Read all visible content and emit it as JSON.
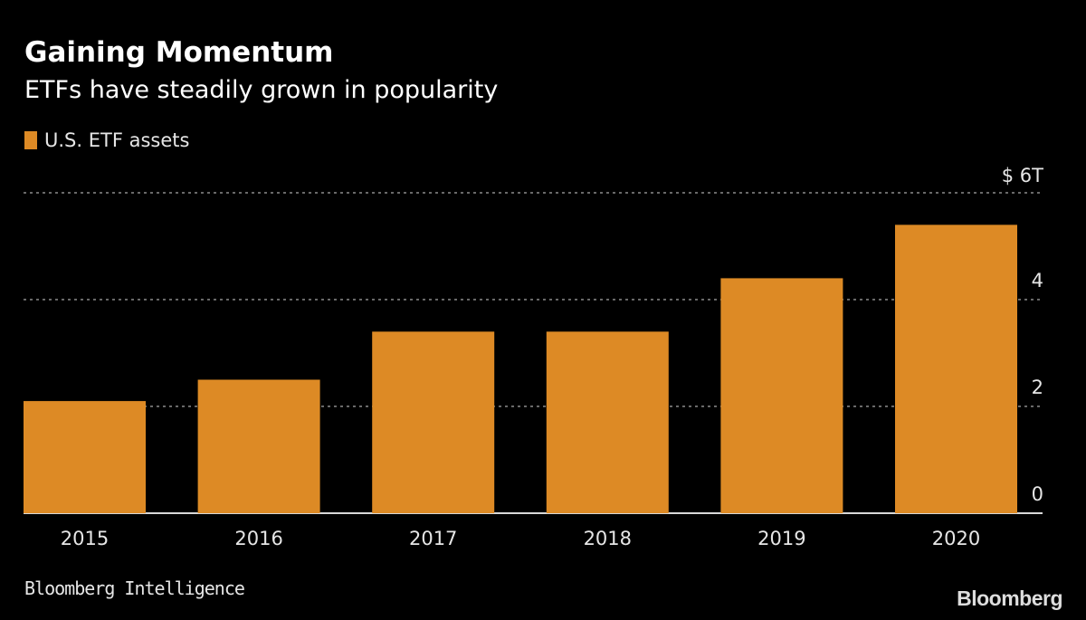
{
  "header": {
    "title": "Gaining Momentum",
    "subtitle": "ETFs have steadily grown in popularity"
  },
  "footer": {
    "source": "Bloomberg Intelligence",
    "brand": "Bloomberg"
  },
  "colors": {
    "background": "#000000",
    "bar": "#dd8a25",
    "gridline": "#8c8c8c",
    "baseline": "#d9d9d9",
    "text": "#e6e6e6"
  },
  "chart_data": {
    "type": "bar",
    "title": "Gaining Momentum",
    "subtitle": "ETFs have steadily grown in popularity",
    "xlabel": "",
    "ylabel": "",
    "categories": [
      "2015",
      "2016",
      "2017",
      "2018",
      "2019",
      "2020"
    ],
    "series": [
      {
        "name": "U.S. ETF assets",
        "values": [
          2.1,
          2.5,
          3.4,
          3.4,
          4.4,
          5.4
        ]
      }
    ],
    "ylim": [
      0,
      6
    ],
    "yticks": [
      0,
      2,
      4,
      6
    ],
    "ytick_labels": [
      "0",
      "2",
      "4",
      "$ 6T"
    ],
    "y_axis_side": "right",
    "grid": true,
    "legend_position": "top-left",
    "source": "Bloomberg Intelligence"
  }
}
